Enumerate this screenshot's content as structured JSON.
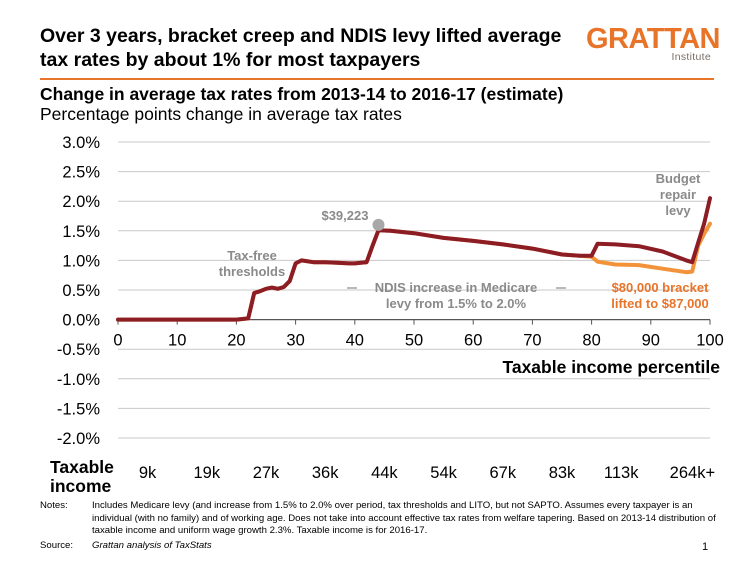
{
  "title": "Over 3 years, bracket creep and NDIS levy lifted average tax rates by about 1% for most taxpayers",
  "logo": {
    "name": "GRATTAN",
    "sub": "Institute"
  },
  "subtitle": "Change in average tax rates from 2013-14 to 2016-17 (estimate)",
  "unit_line": "Percentage points change in average tax rates",
  "colors": {
    "accent": "#e8742a",
    "dark_series": "#8c1d24",
    "orange_series": "#f2933a",
    "grid": "#c8c8c8",
    "annotation": "#8a8a8a",
    "marker": "#a8a8a8"
  },
  "chart_data": {
    "type": "line",
    "xlabel": "Taxable income percentile",
    "ylim": [
      -2.0,
      3.0
    ],
    "xlim": [
      0,
      100
    ],
    "grid": true,
    "y_ticks": [
      "3.0%",
      "2.5%",
      "2.0%",
      "1.5%",
      "1.0%",
      "0.5%",
      "0.0%",
      "-0.5%",
      "-1.0%",
      "-1.5%",
      "-2.0%"
    ],
    "y_tick_values": [
      3.0,
      2.5,
      2.0,
      1.5,
      1.0,
      0.5,
      0.0,
      -0.5,
      -1.0,
      -1.5,
      -2.0
    ],
    "x_ticks": [
      "0",
      "10",
      "20",
      "30",
      "40",
      "50",
      "60",
      "70",
      "80",
      "90",
      "100"
    ],
    "x_tick_values": [
      0,
      10,
      20,
      30,
      40,
      50,
      60,
      70,
      80,
      90,
      100
    ],
    "income_row_label": "Taxable income",
    "income_ticks": [
      "9k",
      "19k",
      "27k",
      "36k",
      "44k",
      "54k",
      "67k",
      "83k",
      "113k",
      "264k+"
    ],
    "income_tick_percentiles": [
      10,
      20,
      30,
      40,
      50,
      60,
      70,
      80,
      90,
      100
    ],
    "series": [
      {
        "x": [
          0,
          5,
          10,
          15,
          20,
          22,
          23,
          24,
          25,
          26,
          27,
          28,
          29,
          30,
          31,
          33,
          35,
          37,
          39,
          40,
          41,
          42,
          43,
          44,
          46,
          50,
          55,
          60,
          65,
          70,
          75,
          78,
          80,
          81,
          84,
          88,
          92,
          96,
          97,
          98,
          99,
          100
        ],
        "y": [
          0.0,
          0.0,
          0.0,
          0.0,
          0.0,
          0.02,
          0.45,
          0.48,
          0.52,
          0.54,
          0.52,
          0.55,
          0.65,
          0.95,
          1.0,
          0.97,
          0.97,
          0.96,
          0.95,
          0.95,
          0.96,
          0.97,
          1.25,
          1.51,
          1.5,
          1.46,
          1.38,
          1.33,
          1.27,
          1.2,
          1.1,
          1.08,
          1.06,
          0.98,
          0.93,
          0.92,
          0.86,
          0.8,
          0.81,
          1.25,
          1.45,
          1.62
        ]
      },
      {
        "x": [
          0,
          5,
          10,
          15,
          20,
          22,
          23,
          24,
          25,
          26,
          27,
          28,
          29,
          30,
          31,
          33,
          35,
          37,
          39,
          40,
          41,
          42,
          43,
          44,
          46,
          50,
          55,
          60,
          65,
          70,
          75,
          78,
          80,
          81,
          84,
          88,
          92,
          96,
          97,
          98,
          99,
          100
        ],
        "y": [
          0.0,
          0.0,
          0.0,
          0.0,
          0.0,
          0.02,
          0.45,
          0.48,
          0.52,
          0.54,
          0.52,
          0.55,
          0.65,
          0.95,
          1.0,
          0.97,
          0.97,
          0.96,
          0.95,
          0.95,
          0.96,
          0.97,
          1.25,
          1.51,
          1.5,
          1.46,
          1.38,
          1.33,
          1.27,
          1.2,
          1.1,
          1.08,
          1.08,
          1.28,
          1.27,
          1.24,
          1.15,
          1.0,
          0.97,
          1.3,
          1.62,
          2.05
        ]
      }
    ],
    "marker": {
      "label": "$39,223",
      "x": 44,
      "y": 1.6
    },
    "annotations": [
      {
        "text": [
          "Tax-free",
          "thresholds"
        ]
      },
      {
        "text": [
          "NDIS increase in Medicare",
          "levy from 1.5% to 2.0%"
        ]
      },
      {
        "text": [
          "Budget",
          "repair",
          "levy"
        ]
      },
      {
        "text": [
          "$80,000 bracket",
          "lifted to $87,000"
        ]
      }
    ]
  },
  "notes_label": "Notes:",
  "notes": "Includes Medicare levy (and increase from 1.5% to 2.0% over period, tax thresholds and LITO, but not SAPTO. Assumes every taxpayer is an individual (with no family) and of working age. Does not take into account effective tax rates from welfare tapering. Based on 2013-14 distribution of taxable income and uniform wage growth 2.3%. Taxable income is for 2016-17.",
  "source_label": "Source:",
  "source": "Grattan analysis of TaxStats",
  "page_number": "1"
}
